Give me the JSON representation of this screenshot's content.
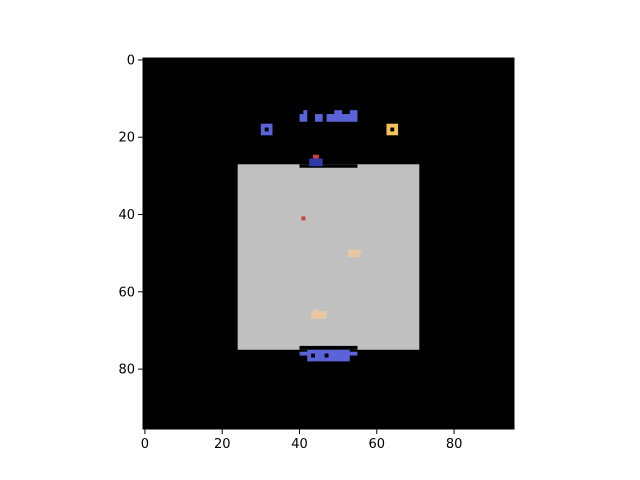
{
  "axes": {
    "x_ticks": [
      0,
      20,
      40,
      60,
      80
    ],
    "y_ticks": [
      0,
      20,
      40,
      60,
      80
    ],
    "xlim": [
      -0.5,
      95.5
    ],
    "ylim": [
      95.5,
      -0.5
    ],
    "origin": "top-left",
    "grid": false
  },
  "colors": {
    "background": "#000000",
    "arena": "#c0c0c0",
    "ship": "#5b63d8",
    "ship_dark": "#2f3aa8",
    "gold": "#f0c45a",
    "red": "#d23c3c",
    "food": "#e8c6a4"
  },
  "frame": {
    "arena": {
      "x": [
        24,
        71
      ],
      "y": [
        27,
        75
      ]
    },
    "arena_notches": [
      {
        "x": [
          40,
          55
        ],
        "y": [
          27,
          27.9
        ]
      },
      {
        "x": [
          40,
          55
        ],
        "y": [
          74,
          75
        ]
      }
    ],
    "enemy_top_parts": [
      {
        "x": [
          40,
          42
        ],
        "y": [
          14,
          16
        ]
      },
      {
        "x": [
          41,
          42
        ],
        "y": [
          13,
          14
        ]
      },
      {
        "x": [
          44,
          46
        ],
        "y": [
          14,
          16
        ]
      },
      {
        "x": [
          47,
          55
        ],
        "y": [
          14,
          16
        ]
      },
      {
        "x": [
          49,
          51
        ],
        "y": [
          13,
          14
        ]
      },
      {
        "x": [
          53,
          55
        ],
        "y": [
          13,
          14
        ]
      }
    ],
    "life_icon": {
      "x": [
        30,
        33
      ],
      "y": [
        16.5,
        19.5
      ],
      "hole": {
        "x": [
          31,
          32
        ],
        "y": [
          17.5,
          18.5
        ]
      }
    },
    "gold_icon": {
      "x": [
        62.5,
        65.5
      ],
      "y": [
        16.5,
        19.5
      ],
      "hole": {
        "x": [
          63.5,
          64.5
        ],
        "y": [
          17.5,
          18.5
        ]
      }
    },
    "bottom_ship_parts": [
      {
        "x": [
          40,
          55
        ],
        "y": [
          75.5,
          76.5
        ]
      },
      {
        "x": [
          42,
          53
        ],
        "y": [
          75,
          78
        ]
      }
    ],
    "bottom_ship_holes": [
      {
        "x": [
          43,
          44
        ],
        "y": [
          76,
          77
        ]
      },
      {
        "x": [
          46.5,
          47.5
        ],
        "y": [
          76,
          77
        ]
      }
    ],
    "player_top": {
      "x": [
        42.5,
        46
      ],
      "y": [
        25.5,
        27.5
      ]
    },
    "player_top_marker": {
      "x": [
        43.5,
        45
      ],
      "y": [
        24.5,
        25.5
      ]
    },
    "red_dot": {
      "x": [
        40.5,
        41.5
      ],
      "y": [
        40.5,
        41.5
      ]
    },
    "food_items": [
      {
        "x": [
          52.5,
          55.5
        ],
        "y": [
          49,
          51
        ]
      },
      {
        "x": [
          55,
          56
        ],
        "y": [
          49.5,
          50.5
        ]
      },
      {
        "x": [
          43,
          47
        ],
        "y": [
          65,
          67
        ]
      },
      {
        "x": [
          44,
          45
        ],
        "y": [
          64.5,
          65.5
        ]
      }
    ]
  }
}
